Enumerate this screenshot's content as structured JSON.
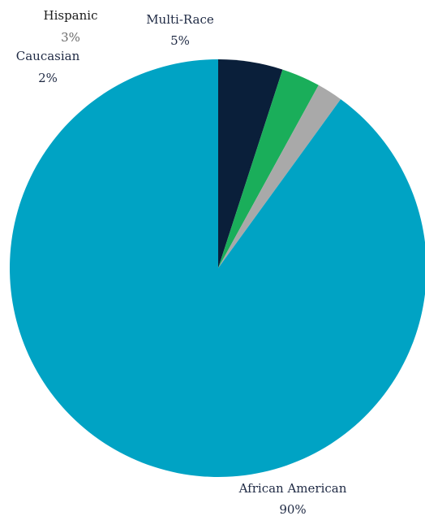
{
  "chart_data": {
    "type": "pie",
    "title": "",
    "slices": [
      {
        "label": "African American",
        "value": 90,
        "display": "90%",
        "color": "#00A3C4"
      },
      {
        "label": "Caucasian",
        "value": 2,
        "display": "2%",
        "color": "#A9A9A9"
      },
      {
        "label": "Hispanic",
        "value": 3,
        "display": "3%",
        "color": "#1AAE5A"
      },
      {
        "label": "Multi-Race",
        "value": 5,
        "display": "5%",
        "color": "#0A1F3A"
      }
    ],
    "start_angle": "12 o'clock",
    "direction": "clockwise",
    "legend": "none"
  }
}
